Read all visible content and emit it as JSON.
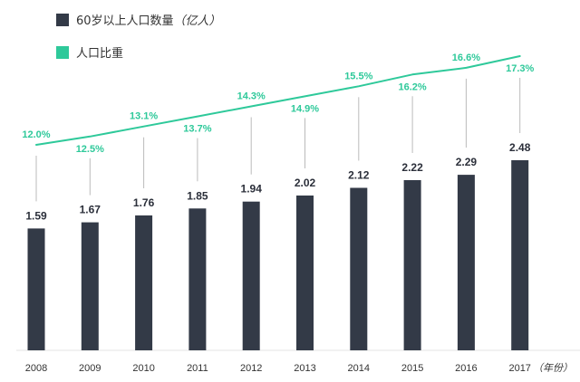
{
  "chart_data": {
    "type": "bar+line",
    "categories": [
      "2008",
      "2009",
      "2010",
      "2011",
      "2012",
      "2013",
      "2014",
      "2015",
      "2016",
      "2017"
    ],
    "x_unit_label": "（年份）",
    "series": [
      {
        "name": "60岁以上人口数量",
        "unit_label": "（亿人）",
        "type": "bar",
        "color": "#333a47",
        "values": [
          1.59,
          1.67,
          1.76,
          1.85,
          1.94,
          2.02,
          2.12,
          2.22,
          2.29,
          2.48
        ],
        "labels": [
          "1.59",
          "1.67",
          "1.76",
          "1.85",
          "1.94",
          "2.02",
          "2.12",
          "2.22",
          "2.29",
          "2.48"
        ]
      },
      {
        "name": "人口比重",
        "type": "line",
        "color": "#2ec99a",
        "values": [
          12.0,
          12.5,
          13.1,
          13.7,
          14.3,
          14.9,
          15.5,
          16.2,
          16.6,
          17.3
        ],
        "labels": [
          "12.0%",
          "12.5%",
          "13.1%",
          "13.7%",
          "14.3%",
          "14.9%",
          "15.5%",
          "16.2%",
          "16.6%",
          "17.3%"
        ],
        "label_side": [
          "above",
          "below",
          "above",
          "below",
          "above",
          "below",
          "above",
          "below",
          "above",
          "below"
        ]
      }
    ],
    "legend_position": "top-left",
    "grid": false,
    "axis_line_color": "#e3e3e3",
    "leader_line_color": "#bbbbbb"
  }
}
